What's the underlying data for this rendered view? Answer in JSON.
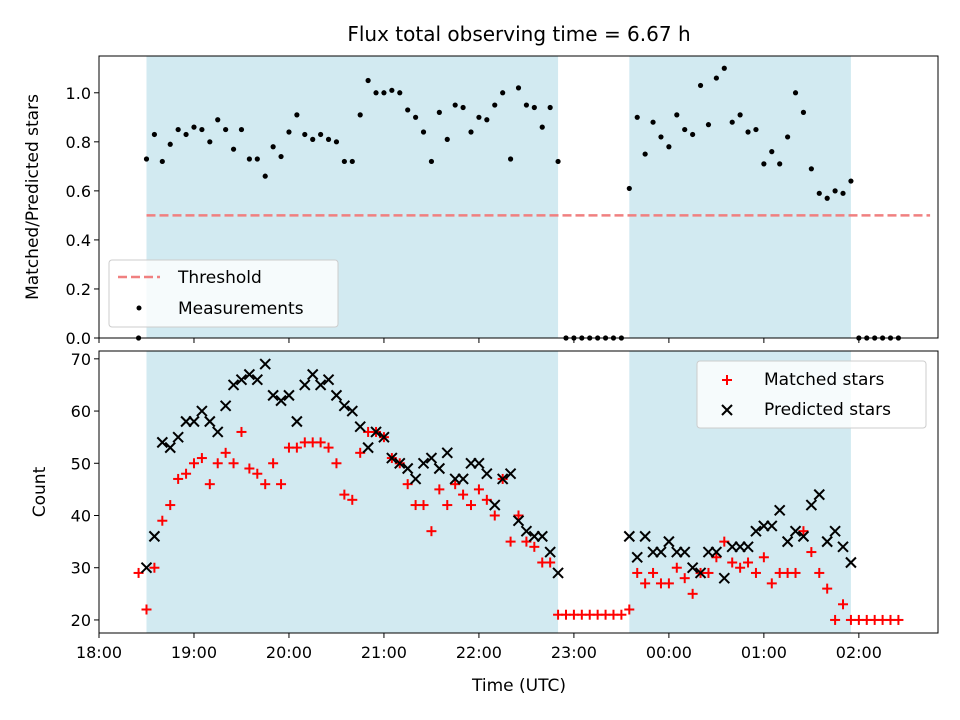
{
  "figure": {
    "title": "Flux total observing time = 6.67 h",
    "xlabel": "Time (UTC)"
  },
  "colors": {
    "band": "#add8e6",
    "threshold": "#f08080",
    "matched": "#ff0000",
    "predicted": "#000000",
    "measurement": "#000000"
  },
  "chart_data": [
    {
      "type": "scatter",
      "panel": "top",
      "ylabel": "Matched/Predicted stars",
      "ylim": [
        0.0,
        1.15
      ],
      "yticks": [
        0.0,
        0.2,
        0.4,
        0.6,
        0.8,
        1.0
      ],
      "xlim": [
        "18:00",
        "02:50"
      ],
      "xticks": [
        "18:00",
        "19:00",
        "20:00",
        "21:00",
        "22:00",
        "23:00",
        "00:00",
        "01:00",
        "02:00"
      ],
      "legend": {
        "placement": "lower-left",
        "entries": [
          "Threshold",
          "Measurements"
        ]
      },
      "observing_windows": [
        [
          "18:30",
          "22:50"
        ],
        [
          "23:35",
          "01:55"
        ]
      ],
      "series": [
        {
          "name": "Threshold",
          "style": "dashed-line",
          "x": [
            "18:30",
            "02:45"
          ],
          "y": [
            0.5,
            0.5
          ]
        },
        {
          "name": "Measurements",
          "style": "dots",
          "x": [
            "18:25",
            "18:30",
            "18:35",
            "18:40",
            "18:45",
            "18:50",
            "18:55",
            "19:00",
            "19:05",
            "19:10",
            "19:15",
            "19:20",
            "19:25",
            "19:30",
            "19:35",
            "19:40",
            "19:45",
            "19:50",
            "19:55",
            "20:00",
            "20:05",
            "20:10",
            "20:15",
            "20:20",
            "20:25",
            "20:30",
            "20:35",
            "20:40",
            "20:45",
            "20:50",
            "20:55",
            "21:00",
            "21:05",
            "21:10",
            "21:15",
            "21:20",
            "21:25",
            "21:30",
            "21:35",
            "21:40",
            "21:45",
            "21:50",
            "21:55",
            "22:00",
            "22:05",
            "22:10",
            "22:15",
            "22:20",
            "22:25",
            "22:30",
            "22:35",
            "22:40",
            "22:45",
            "22:50",
            "22:55",
            "23:00",
            "23:05",
            "23:10",
            "23:15",
            "23:20",
            "23:25",
            "23:30",
            "23:35",
            "23:40",
            "23:45",
            "23:50",
            "23:55",
            "00:00",
            "00:05",
            "00:10",
            "00:15",
            "00:20",
            "00:25",
            "00:30",
            "00:35",
            "00:40",
            "00:45",
            "00:50",
            "00:55",
            "01:00",
            "01:05",
            "01:10",
            "01:15",
            "01:20",
            "01:25",
            "01:30",
            "01:35",
            "01:40",
            "01:45",
            "01:50",
            "01:55",
            "02:00",
            "02:05",
            "02:10",
            "02:15",
            "02:20",
            "02:25"
          ],
          "y": [
            0.0,
            0.73,
            0.83,
            0.72,
            0.79,
            0.85,
            0.83,
            0.86,
            0.85,
            0.8,
            0.89,
            0.85,
            0.77,
            0.85,
            0.73,
            0.73,
            0.66,
            0.78,
            0.74,
            0.84,
            0.91,
            0.83,
            0.81,
            0.83,
            0.81,
            0.8,
            0.72,
            0.72,
            0.91,
            1.05,
            1.0,
            1.0,
            1.01,
            1.0,
            0.93,
            0.9,
            0.84,
            0.72,
            0.92,
            0.81,
            0.95,
            0.94,
            0.84,
            0.9,
            0.89,
            0.95,
            1.0,
            0.73,
            1.02,
            0.95,
            0.94,
            0.86,
            0.94,
            0.72,
            0.0,
            0.0,
            0.0,
            0.0,
            0.0,
            0.0,
            0.0,
            0.0,
            0.61,
            0.9,
            0.75,
            0.88,
            0.82,
            0.78,
            0.91,
            0.85,
            0.83,
            1.03,
            0.87,
            1.06,
            1.1,
            0.88,
            0.91,
            0.84,
            0.85,
            0.71,
            0.76,
            0.71,
            0.82,
            1.0,
            0.92,
            0.69,
            0.59,
            0.57,
            0.6,
            0.59,
            0.64,
            0.0,
            0.0,
            0.0,
            0.0,
            0.0,
            0.0
          ]
        }
      ]
    },
    {
      "type": "scatter",
      "panel": "bottom",
      "ylabel": "Count",
      "ylim": [
        17.5,
        71.5
      ],
      "yticks": [
        20,
        30,
        40,
        50,
        60,
        70
      ],
      "xlim": [
        "18:00",
        "02:50"
      ],
      "xticks": [
        "18:00",
        "19:00",
        "20:00",
        "21:00",
        "22:00",
        "23:00",
        "00:00",
        "01:00",
        "02:00"
      ],
      "legend": {
        "placement": "upper-right",
        "entries": [
          "Matched stars",
          "Predicted stars"
        ]
      },
      "observing_windows": [
        [
          "18:30",
          "22:50"
        ],
        [
          "23:35",
          "01:55"
        ]
      ],
      "series": [
        {
          "name": "Matched stars",
          "marker": "+",
          "x": [
            "18:25",
            "18:30",
            "18:35",
            "18:40",
            "18:45",
            "18:50",
            "18:55",
            "19:00",
            "19:05",
            "19:10",
            "19:15",
            "19:20",
            "19:25",
            "19:30",
            "19:35",
            "19:40",
            "19:45",
            "19:50",
            "19:55",
            "20:00",
            "20:05",
            "20:10",
            "20:15",
            "20:20",
            "20:25",
            "20:30",
            "20:35",
            "20:40",
            "20:45",
            "20:50",
            "20:55",
            "21:00",
            "21:05",
            "21:10",
            "21:15",
            "21:20",
            "21:25",
            "21:30",
            "21:35",
            "21:40",
            "21:45",
            "21:50",
            "21:55",
            "22:00",
            "22:05",
            "22:10",
            "22:15",
            "22:20",
            "22:25",
            "22:30",
            "22:35",
            "22:40",
            "22:45",
            "22:50",
            "22:55",
            "23:00",
            "23:05",
            "23:10",
            "23:15",
            "23:20",
            "23:25",
            "23:30",
            "23:35",
            "23:40",
            "23:45",
            "23:50",
            "23:55",
            "00:00",
            "00:05",
            "00:10",
            "00:15",
            "00:20",
            "00:25",
            "00:30",
            "00:35",
            "00:40",
            "00:45",
            "00:50",
            "00:55",
            "01:00",
            "01:05",
            "01:10",
            "01:15",
            "01:20",
            "01:25",
            "01:30",
            "01:35",
            "01:40",
            "01:45",
            "01:50",
            "01:55",
            "02:00",
            "02:05",
            "02:10",
            "02:15",
            "02:20",
            "02:25"
          ],
          "y": [
            29,
            22,
            30,
            39,
            42,
            47,
            48,
            50,
            51,
            46,
            50,
            52,
            50,
            56,
            49,
            48,
            46,
            50,
            46,
            53,
            53,
            54,
            54,
            54,
            53,
            50,
            44,
            43,
            52,
            56,
            56,
            55,
            51,
            50,
            46,
            42,
            42,
            37,
            45,
            42,
            46,
            44,
            42,
            45,
            43,
            40,
            47,
            35,
            40,
            35,
            34,
            31,
            31,
            21,
            21,
            21,
            21,
            21,
            21,
            21,
            21,
            21,
            22,
            29,
            27,
            29,
            27,
            27,
            30,
            28,
            25,
            29,
            29,
            32,
            35,
            31,
            30,
            31,
            29,
            32,
            27,
            29,
            29,
            29,
            37,
            33,
            29,
            26,
            20,
            23,
            20,
            20,
            20,
            20,
            20,
            20,
            20
          ]
        },
        {
          "name": "Predicted stars",
          "marker": "x",
          "x": [
            "18:30",
            "18:35",
            "18:40",
            "18:45",
            "18:50",
            "18:55",
            "19:00",
            "19:05",
            "19:10",
            "19:15",
            "19:20",
            "19:25",
            "19:30",
            "19:35",
            "19:40",
            "19:45",
            "19:50",
            "19:55",
            "20:00",
            "20:05",
            "20:10",
            "20:15",
            "20:20",
            "20:25",
            "20:30",
            "20:35",
            "20:40",
            "20:45",
            "20:50",
            "20:55",
            "21:00",
            "21:05",
            "21:10",
            "21:15",
            "21:20",
            "21:25",
            "21:30",
            "21:35",
            "21:40",
            "21:45",
            "21:50",
            "21:55",
            "22:00",
            "22:05",
            "22:10",
            "22:15",
            "22:20",
            "22:25",
            "22:30",
            "22:35",
            "22:40",
            "22:45",
            "22:50",
            "23:35",
            "23:40",
            "23:45",
            "23:50",
            "23:55",
            "00:00",
            "00:05",
            "00:10",
            "00:15",
            "00:20",
            "00:25",
            "00:30",
            "00:35",
            "00:40",
            "00:45",
            "00:50",
            "00:55",
            "01:00",
            "01:05",
            "01:10",
            "01:15",
            "01:20",
            "01:25",
            "01:30",
            "01:35",
            "01:40",
            "01:45",
            "01:50",
            "01:55"
          ],
          "y": [
            30,
            36,
            54,
            53,
            55,
            58,
            58,
            60,
            58,
            56,
            61,
            65,
            66,
            67,
            66,
            69,
            63,
            62,
            63,
            58,
            65,
            67,
            65,
            66,
            63,
            61,
            60,
            57,
            53,
            56,
            55,
            51,
            50,
            49,
            47,
            50,
            51,
            49,
            52,
            47,
            47,
            50,
            50,
            48,
            42,
            47,
            48,
            39,
            37,
            36,
            36,
            33,
            29,
            36,
            32,
            36,
            33,
            33,
            35,
            33,
            33,
            30,
            29,
            33,
            33,
            28,
            34,
            34,
            34,
            37,
            38,
            38,
            41,
            35,
            37,
            36,
            42,
            44,
            35,
            37,
            34,
            31
          ]
        }
      ]
    }
  ]
}
